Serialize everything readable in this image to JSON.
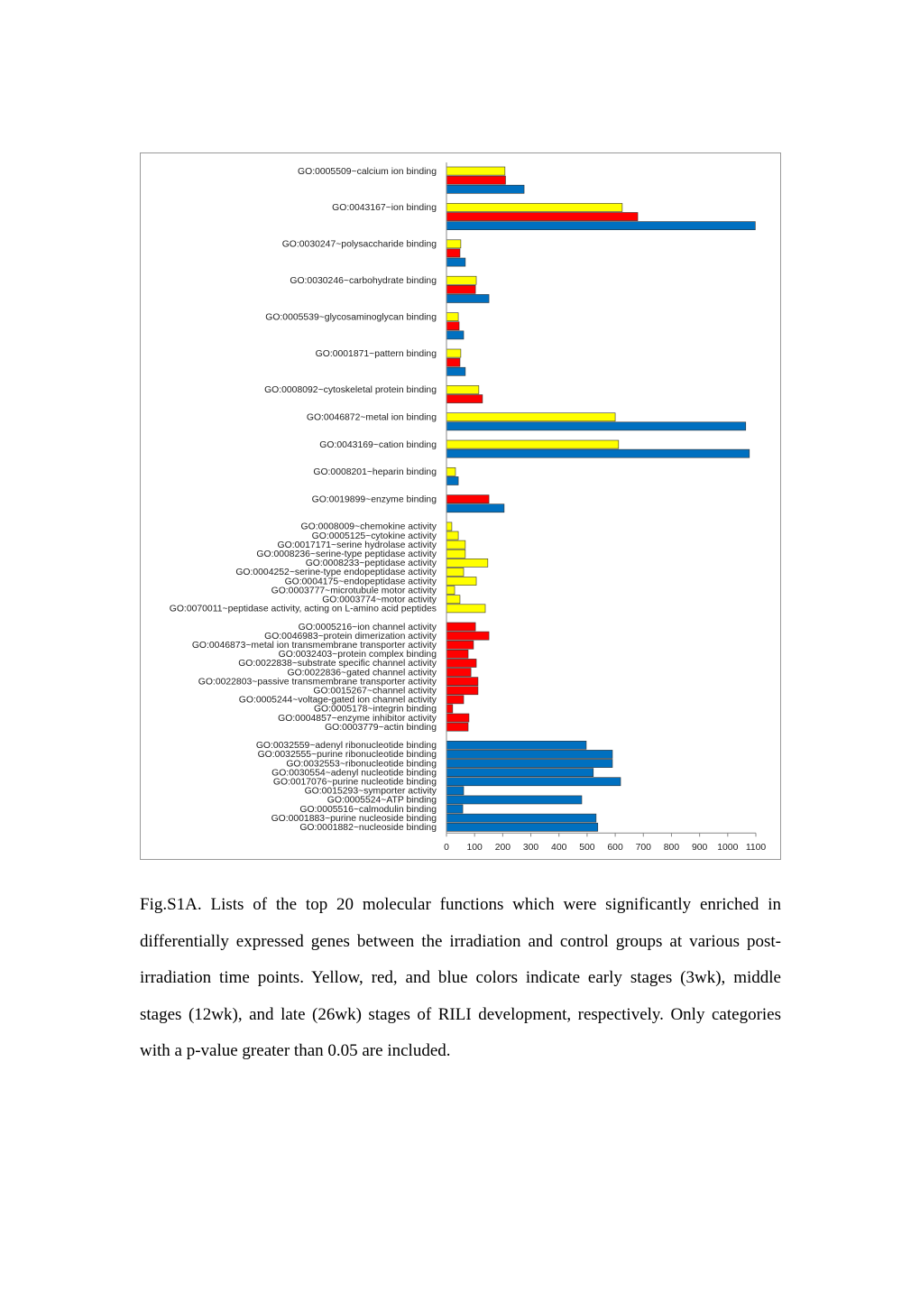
{
  "chart_data": {
    "type": "bar",
    "orientation": "horizontal",
    "categories": [
      "GO:0005509~calcium ion binding",
      "GO:0043167~ion binding",
      "GO:0030247~polysaccharide binding",
      "GO:0030246~carbohydrate binding",
      "GO:0005539~glycosaminoglycan binding",
      "GO:0001871~pattern binding",
      "GO:0008092~cytoskeletal protein binding",
      "GO:0046872~metal ion binding",
      "GO:0043169~cation binding",
      "GO:0008201~heparin binding",
      "GO:0019899~enzyme binding",
      "GO:0008009~chemokine activity",
      "GO:0005125~cytokine activity",
      "GO:0017171~serine hydrolase activity",
      "GO:0008236~serine-type peptidase activity",
      "GO:0008233~peptidase activity",
      "GO:0004252~serine-type endopeptidase activity",
      "GO:0004175~endopeptidase activity",
      "GO:0003777~microtubule motor activity",
      "GO:0003774~motor activity",
      "GO:0070011~peptidase activity, acting on L-amino acid peptides",
      "GO:0005216~ion channel activity",
      "GO:0046983~protein dimerization activity",
      "GO:0046873~metal ion transmembrane transporter activity",
      "GO:0032403~protein complex binding",
      "GO:0022838~substrate specific channel activity",
      "GO:0022836~gated channel activity",
      "GO:0022803~passive transmembrane transporter activity",
      "GO:0015267~channel activity",
      "GO:0005244~voltage-gated ion channel activity",
      "GO:0005178~integrin binding",
      "GO:0004857~enzyme inhibitor activity",
      "GO:0003779~actin binding",
      "GO:0032559~adenyl ribonucleotide binding",
      "GO:0032555~purine ribonucleotide binding",
      "GO:0032553~ribonucleotide binding",
      "GO:0030554~adenyl nucleotide binding",
      "GO:0017076~purine nucleotide binding",
      "GO:0015293~symporter activity",
      "GO:0005524~ATP binding",
      "GO:0005516~calmodulin binding",
      "GO:0001883~purine nucleoside binding",
      "GO:0001882~nucleoside binding"
    ],
    "series": [
      {
        "color": "#ffff00",
        "values": [
          208,
          625,
          51,
          106,
          42,
          51,
          115,
          600,
          612,
          32,
          null,
          19,
          42,
          67,
          67,
          147,
          61,
          106,
          29,
          48,
          138,
          null,
          null,
          null,
          null,
          null,
          null,
          null,
          null,
          null,
          null,
          null,
          null,
          null,
          null,
          null,
          null,
          null,
          null,
          null,
          null,
          null,
          null
        ]
      },
      {
        "color": "#ff0000",
        "values": [
          210,
          680,
          48,
          103,
          45,
          48,
          128,
          null,
          null,
          null,
          151,
          null,
          null,
          null,
          null,
          null,
          null,
          null,
          null,
          null,
          null,
          103,
          151,
          96,
          77,
          106,
          87,
          112,
          112,
          61,
          22,
          80,
          77,
          null,
          null,
          null,
          null,
          null,
          null,
          null,
          null,
          null,
          null
        ]
      },
      {
        "color": "#0070c0",
        "values": [
          276,
          1098,
          67,
          151,
          61,
          67,
          null,
          1064,
          1077,
          42,
          205,
          null,
          null,
          null,
          null,
          null,
          null,
          null,
          null,
          null,
          null,
          null,
          null,
          null,
          null,
          null,
          null,
          null,
          null,
          null,
          null,
          null,
          null,
          497,
          590,
          590,
          522,
          619,
          61,
          481,
          58,
          532,
          538
        ]
      }
    ],
    "xlim": [
      0,
      1100
    ],
    "xticks": [
      0,
      100,
      200,
      300,
      400,
      500,
      600,
      700,
      800,
      900,
      1000,
      1100
    ]
  },
  "caption": "Fig.S1A. Lists of the top 20 molecular functions which were significantly enriched in differentially expressed genes between the irradiation and control groups at various post-irradiation time points. Yellow, red, and blue colors indicate early stages (3wk), middle stages (12wk), and late (26wk) stages of RILI development, respectively. Only categories with a p-value greater than 0.05 are included."
}
